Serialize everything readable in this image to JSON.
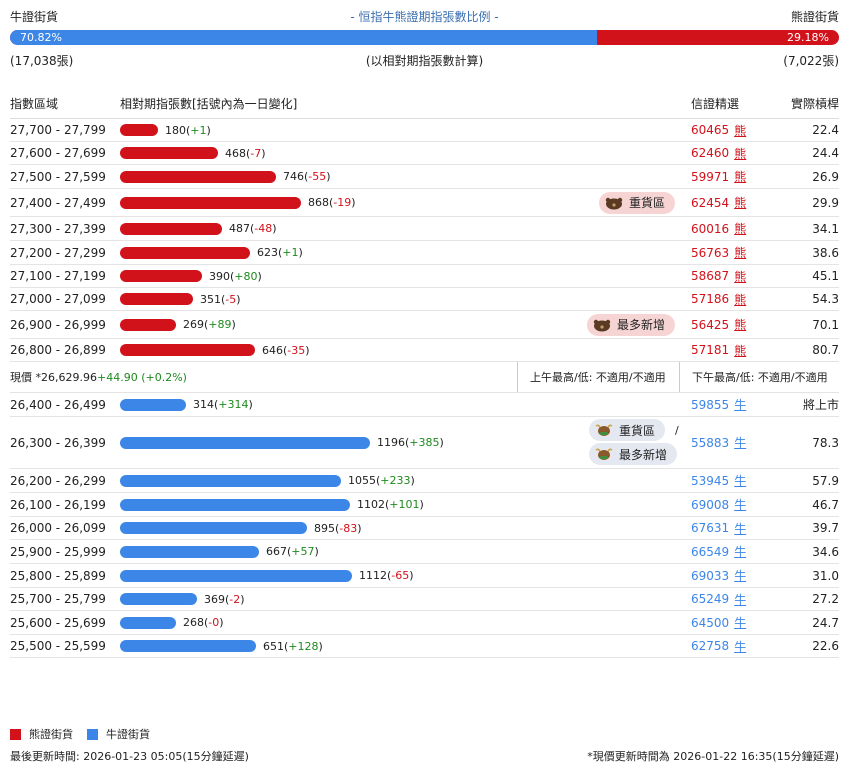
{
  "header": {
    "left_label": "牛證街貨",
    "title": "- 恒指牛熊證期指張數比例 -",
    "right_label": "熊證街貨",
    "bull_pct": "70.82%",
    "bear_pct": "29.18%",
    "bull_share": 0.7082,
    "bull_count": "(17,038張)",
    "note": "(以相對期指張數計算)",
    "bear_count": "(7,022張)"
  },
  "columns": {
    "range": "指數區域",
    "contracts": "相對期指張數[括號內為一日變化]",
    "leader": "信證精選",
    "leverage": "實際槓桿"
  },
  "bear_rows": [
    {
      "range": "27,700 - 27,799",
      "value": 180,
      "value_text": "180",
      "change": "+1",
      "code": "60465",
      "suffix": "熊",
      "lev": "22.4"
    },
    {
      "range": "27,600 - 27,699",
      "value": 468,
      "value_text": "468",
      "change": "-7",
      "code": "62460",
      "suffix": "熊",
      "lev": "24.4"
    },
    {
      "range": "27,500 - 27,599",
      "value": 746,
      "value_text": "746",
      "change": "-55",
      "code": "59971",
      "suffix": "熊",
      "lev": "26.9"
    },
    {
      "range": "27,400 - 27,499",
      "value": 868,
      "value_text": "868",
      "change": "-19",
      "code": "62454",
      "suffix": "熊",
      "lev": "29.9",
      "tag": "重貨區"
    },
    {
      "range": "27,300 - 27,399",
      "value": 487,
      "value_text": "487",
      "change": "-48",
      "code": "60016",
      "suffix": "熊",
      "lev": "34.1"
    },
    {
      "range": "27,200 - 27,299",
      "value": 623,
      "value_text": "623",
      "change": "+1",
      "code": "56763",
      "suffix": "熊",
      "lev": "38.6"
    },
    {
      "range": "27,100 - 27,199",
      "value": 390,
      "value_text": "390",
      "change": "+80",
      "code": "58687",
      "suffix": "熊",
      "lev": "45.1"
    },
    {
      "range": "27,000 - 27,099",
      "value": 351,
      "value_text": "351",
      "change": "-5",
      "code": "57186",
      "suffix": "熊",
      "lev": "54.3"
    },
    {
      "range": "26,900 - 26,999",
      "value": 269,
      "value_text": "269",
      "change": "+89",
      "code": "56425",
      "suffix": "熊",
      "lev": "70.1",
      "tag": "最多新增"
    },
    {
      "range": "26,800 - 26,899",
      "value": 646,
      "value_text": "646",
      "change": "-35",
      "code": "57181",
      "suffix": "熊",
      "lev": "80.7"
    }
  ],
  "quote": {
    "label": "現價 *",
    "price": "26,629.96",
    "change": "+44.90 (+0.2%)",
    "am": "上午最高/低: 不適用/不適用",
    "pm": "下午最高/低: 不適用/不適用"
  },
  "bull_rows": [
    {
      "range": "26,400 - 26,499",
      "value": 314,
      "value_text": "314",
      "change": "+314",
      "code": "59855",
      "suffix": "牛",
      "lev": "將上市"
    },
    {
      "range": "26,300 - 26,399",
      "value": 1196,
      "value_text": "1196",
      "change": "+385",
      "code": "55883",
      "suffix": "牛",
      "lev": "78.3",
      "tag": "重貨區",
      "tag2": "最多新增",
      "sep": "/"
    },
    {
      "range": "26,200 - 26,299",
      "value": 1055,
      "value_text": "1055",
      "change": "+233",
      "code": "53945",
      "suffix": "牛",
      "lev": "57.9"
    },
    {
      "range": "26,100 - 26,199",
      "value": 1102,
      "value_text": "1102",
      "change": "+101",
      "code": "69008",
      "suffix": "牛",
      "lev": "46.7"
    },
    {
      "range": "26,000 - 26,099",
      "value": 895,
      "value_text": "895",
      "change": "-83",
      "code": "67631",
      "suffix": "牛",
      "lev": "39.7"
    },
    {
      "range": "25,900 - 25,999",
      "value": 667,
      "value_text": "667",
      "change": "+57",
      "code": "66549",
      "suffix": "牛",
      "lev": "34.6"
    },
    {
      "range": "25,800 - 25,899",
      "value": 1112,
      "value_text": "1112",
      "change": "-65",
      "code": "69033",
      "suffix": "牛",
      "lev": "31.0"
    },
    {
      "range": "25,700 - 25,799",
      "value": 369,
      "value_text": "369",
      "change": "-2",
      "code": "65249",
      "suffix": "牛",
      "lev": "27.2"
    },
    {
      "range": "25,600 - 25,699",
      "value": 268,
      "value_text": "268",
      "change": "-0",
      "code": "64500",
      "suffix": "牛",
      "lev": "24.7"
    },
    {
      "range": "25,500 - 25,599",
      "value": 651,
      "value_text": "651",
      "change": "+128",
      "code": "62758",
      "suffix": "牛",
      "lev": "22.6"
    }
  ],
  "legend": {
    "bear": "熊證街貨",
    "bull": "牛證街貨"
  },
  "footer": {
    "updated": "最後更新時間: 2026-01-23 05:05(15分鐘延遲)",
    "price_updated": "*現價更新時間為 2026-01-22 16:35(15分鐘延遲)"
  },
  "colors": {
    "bear": "#d1121b",
    "bull": "#3c86e8",
    "positive": "#1e8a1e"
  }
}
